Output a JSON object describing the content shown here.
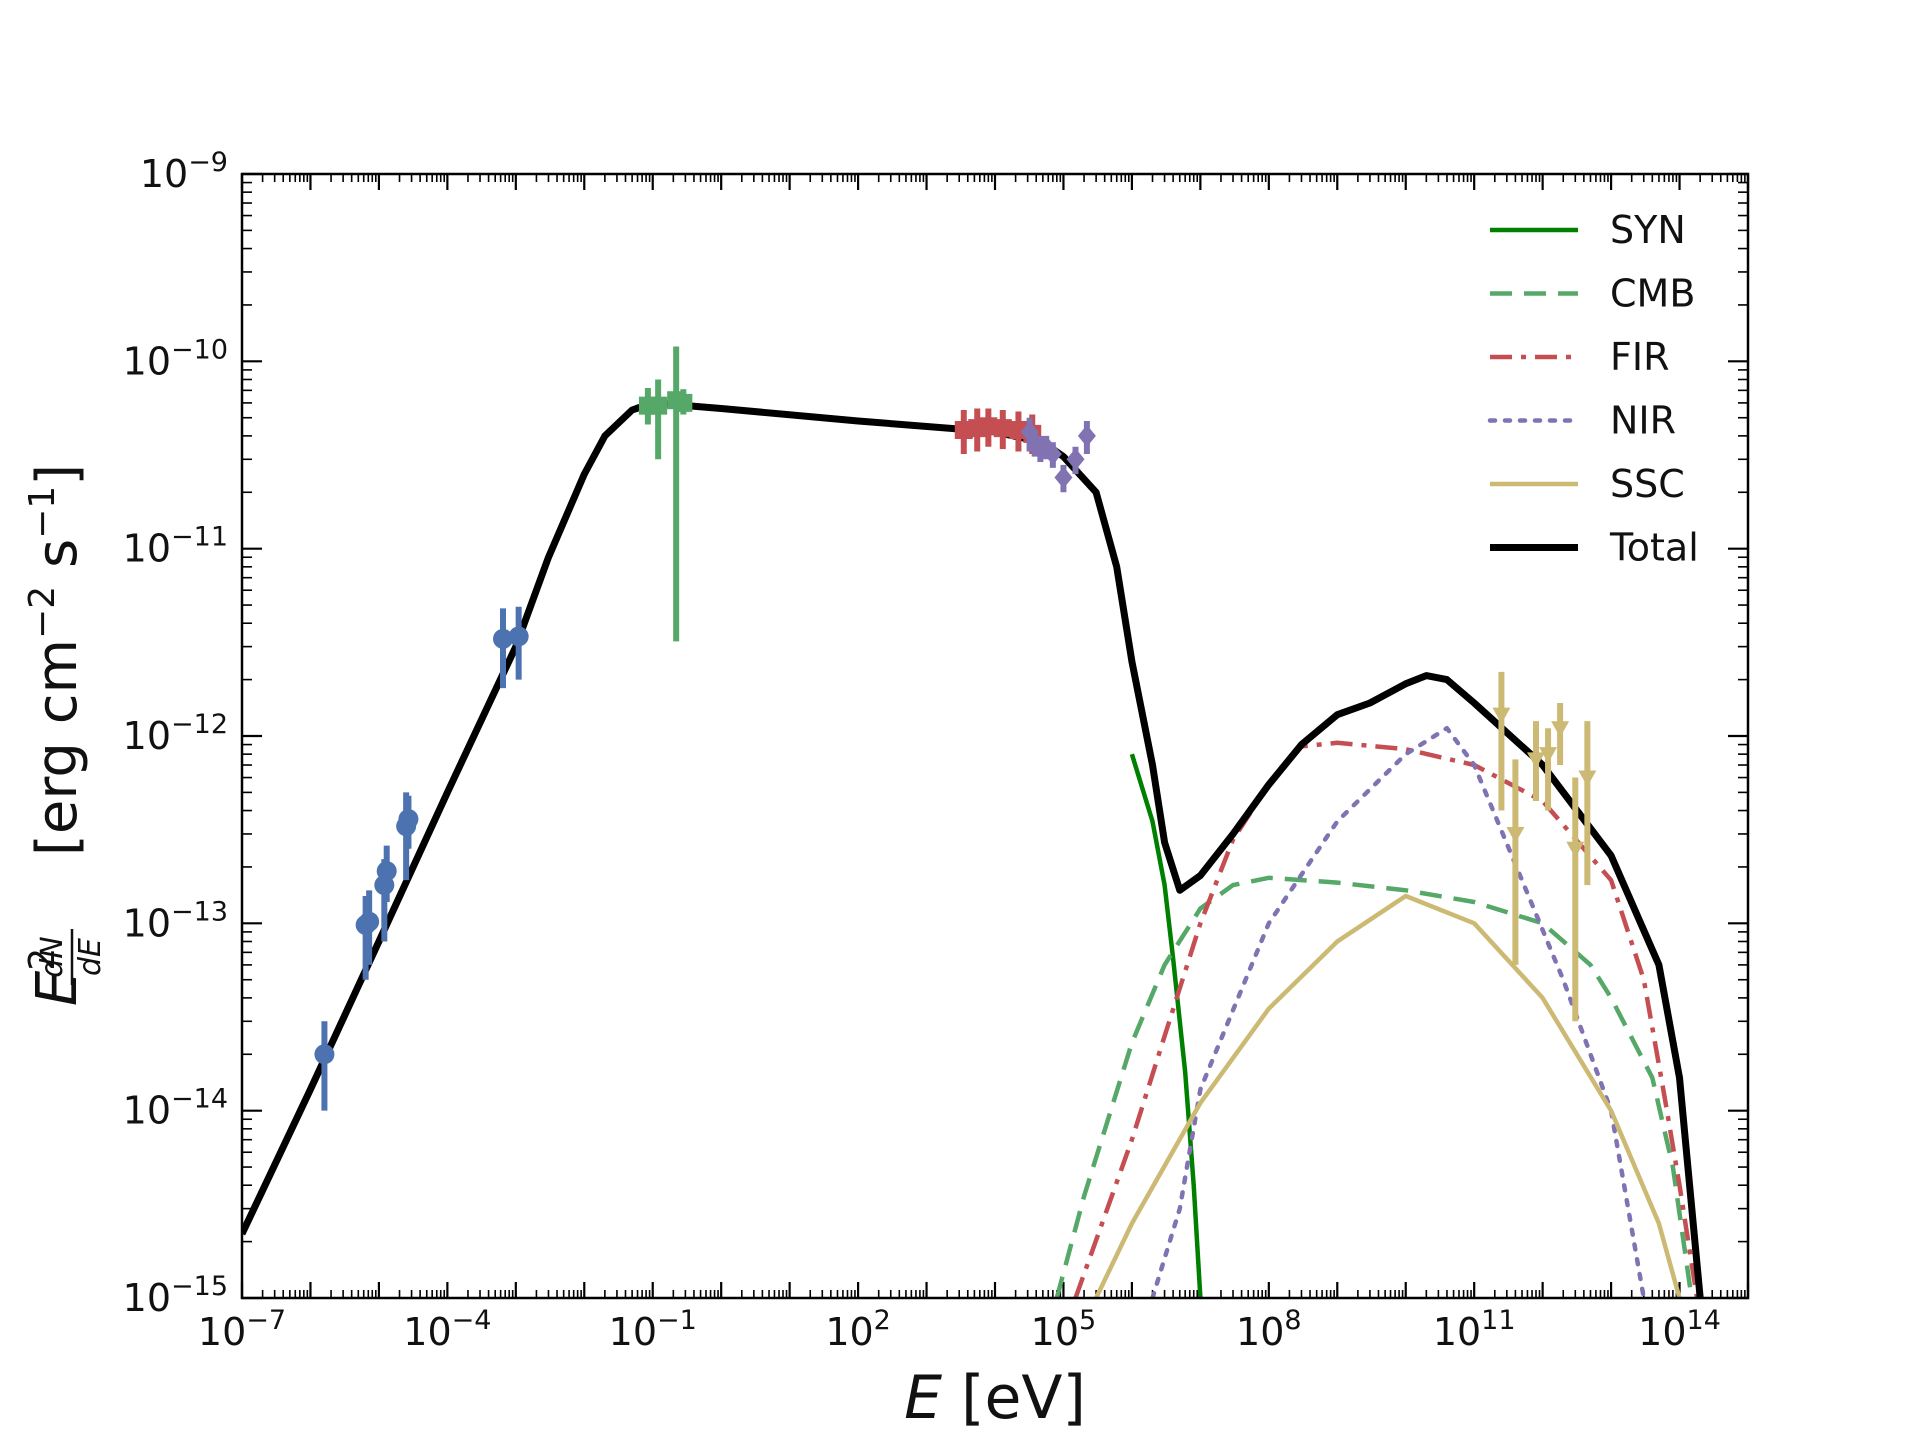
{
  "chart_data": {
    "type": "line",
    "xscale": "log",
    "yscale": "log",
    "xlim": [
      1e-07,
      1000000000000000.0
    ],
    "ylim": [
      1e-15,
      1e-09
    ],
    "xlabel": {
      "var": "E",
      "unit": "[eV]"
    },
    "ylabel": {
      "var": "E",
      "sup": "2",
      "frac_num": "dN",
      "frac_den": "dE",
      "unit_open": "[erg cm",
      "exp1": "−2",
      "mid": " s",
      "exp2": "−1",
      "unit_close": "]"
    },
    "x_ticks": [
      {
        "value": 1e-07,
        "base": "10",
        "exp": "−7"
      },
      {
        "value": 0.0001,
        "base": "10",
        "exp": "−4"
      },
      {
        "value": 0.1,
        "base": "10",
        "exp": "−1"
      },
      {
        "value": 100.0,
        "base": "10",
        "exp": "2"
      },
      {
        "value": 100000.0,
        "base": "10",
        "exp": "5"
      },
      {
        "value": 100000000.0,
        "base": "10",
        "exp": "8"
      },
      {
        "value": 100000000000.0,
        "base": "10",
        "exp": "11"
      },
      {
        "value": 100000000000000.0,
        "base": "10",
        "exp": "14"
      }
    ],
    "y_ticks": [
      {
        "value": 1e-15,
        "base": "10",
        "exp": "−15"
      },
      {
        "value": 1e-14,
        "base": "10",
        "exp": "−14"
      },
      {
        "value": 1e-13,
        "base": "10",
        "exp": "−13"
      },
      {
        "value": 1e-12,
        "base": "10",
        "exp": "−12"
      },
      {
        "value": 1e-11,
        "base": "10",
        "exp": "−11"
      },
      {
        "value": 1e-10,
        "base": "10",
        "exp": "−10"
      },
      {
        "value": 1e-09,
        "base": "10",
        "exp": "−9"
      }
    ],
    "legend_position": "top-right",
    "series": [
      {
        "name": "SYN",
        "color": "#008000",
        "dash": "solid",
        "width": "normal",
        "points": [
          [
            1000000.0,
            8e-13
          ],
          [
            2000000.0,
            3.5e-13
          ],
          [
            3000000.0,
            1.6e-13
          ],
          [
            4000000.0,
            6.5e-14
          ],
          [
            6000000.0,
            1.6e-14
          ],
          [
            8000000.0,
            4e-15
          ],
          [
            10000000.0,
            1e-15
          ]
        ]
      },
      {
        "name": "CMB",
        "color": "#55a868",
        "dash": "dashed",
        "width": "normal",
        "points": [
          [
            80000.0,
            1e-15
          ],
          [
            200000.0,
            3.5e-15
          ],
          [
            1000000.0,
            2.3e-14
          ],
          [
            3000000.0,
            6e-14
          ],
          [
            10000000.0,
            1.2e-13
          ],
          [
            30000000.0,
            1.6e-13
          ],
          [
            100000000.0,
            1.75e-13
          ],
          [
            1000000000.0,
            1.65e-13
          ],
          [
            10000000000.0,
            1.5e-13
          ],
          [
            100000000000.0,
            1.3e-13
          ],
          [
            1000000000000.0,
            1e-13
          ],
          [
            5000000000000.0,
            6e-14
          ],
          [
            10000000000000.0,
            4e-14
          ],
          [
            40000000000000.0,
            1.5e-14
          ],
          [
            80000000000000.0,
            5e-15
          ],
          [
            150000000000000.0,
            1e-15
          ]
        ]
      },
      {
        "name": "FIR",
        "color": "#c44e52",
        "dash": "dashdot",
        "width": "normal",
        "points": [
          [
            150000.0,
            1e-15
          ],
          [
            1000000.0,
            7e-15
          ],
          [
            3000000.0,
            2.5e-14
          ],
          [
            10000000.0,
            1e-13
          ],
          [
            30000000.0,
            2.8e-13
          ],
          [
            100000000.0,
            5.5e-13
          ],
          [
            300000000.0,
            8.8e-13
          ],
          [
            1000000000.0,
            9.2e-13
          ],
          [
            10000000000.0,
            8.5e-13
          ],
          [
            100000000000.0,
            7e-13
          ],
          [
            1000000000000.0,
            4.5e-13
          ],
          [
            10000000000000.0,
            1.7e-13
          ],
          [
            30000000000000.0,
            5e-14
          ],
          [
            60000000000000.0,
            1.2e-14
          ],
          [
            100000000000000.0,
            4e-15
          ],
          [
            180000000000000.0,
            1e-15
          ]
        ]
      },
      {
        "name": "NIR",
        "color": "#8172b2",
        "dash": "dotted",
        "width": "normal",
        "points": [
          [
            2000000.0,
            1e-15
          ],
          [
            5000000.0,
            3e-15
          ],
          [
            10000000.0,
            1.3e-14
          ],
          [
            100000000.0,
            1e-13
          ],
          [
            1000000000.0,
            3.5e-13
          ],
          [
            10000000000.0,
            8e-13
          ],
          [
            40000000000.0,
            1.1e-12
          ],
          [
            100000000000.0,
            7e-13
          ],
          [
            500000000000.0,
            1.7e-13
          ],
          [
            2000000000000.0,
            5e-14
          ],
          [
            10000000000000.0,
            1e-14
          ],
          [
            30000000000000.0,
            1e-15
          ]
        ]
      },
      {
        "name": "SSC",
        "color": "#ccb974",
        "dash": "solid",
        "width": "normal",
        "points": [
          [
            300000.0,
            1e-15
          ],
          [
            1000000.0,
            2.5e-15
          ],
          [
            10000000.0,
            1.1e-14
          ],
          [
            100000000.0,
            3.5e-14
          ],
          [
            1000000000.0,
            8e-14
          ],
          [
            10000000000.0,
            1.4e-13
          ],
          [
            100000000000.0,
            1e-13
          ],
          [
            1000000000000.0,
            4e-14
          ],
          [
            10000000000000.0,
            1e-14
          ],
          [
            50000000000000.0,
            2.5e-15
          ],
          [
            100000000000000.0,
            1e-15
          ]
        ]
      },
      {
        "name": "Total",
        "color": "#000000",
        "dash": "solid",
        "width": "thick",
        "points": [
          [
            1e-07,
            2.2e-15
          ],
          [
            1e-06,
            1.3e-14
          ],
          [
            1e-05,
            8e-14
          ],
          [
            0.0001,
            5e-13
          ],
          [
            0.001,
            3e-12
          ],
          [
            0.003,
            9e-12
          ],
          [
            0.01,
            2.5e-11
          ],
          [
            0.02,
            4e-11
          ],
          [
            0.05,
            5.5e-11
          ],
          [
            0.1,
            6e-11
          ],
          [
            1,
            5.6e-11
          ],
          [
            100,
            4.8e-11
          ],
          [
            10000.0,
            4.2e-11
          ],
          [
            50000.0,
            3.7e-11
          ],
          [
            100000.0,
            3.1e-11
          ],
          [
            300000.0,
            2e-11
          ],
          [
            600000.0,
            8e-12
          ],
          [
            1000000.0,
            2.5e-12
          ],
          [
            2000000.0,
            7e-13
          ],
          [
            3000000.0,
            2.7e-13
          ],
          [
            5000000.0,
            1.5e-13
          ],
          [
            10000000.0,
            1.8e-13
          ],
          [
            30000000.0,
            3e-13
          ],
          [
            100000000.0,
            5.5e-13
          ],
          [
            300000000.0,
            9e-13
          ],
          [
            1000000000.0,
            1.3e-12
          ],
          [
            3000000000.0,
            1.5e-12
          ],
          [
            10000000000.0,
            1.9e-12
          ],
          [
            20000000000.0,
            2.1e-12
          ],
          [
            40000000000.0,
            2e-12
          ],
          [
            100000000000.0,
            1.5e-12
          ],
          [
            1000000000000.0,
            7e-13
          ],
          [
            10000000000000.0,
            2.3e-13
          ],
          [
            50000000000000.0,
            6e-14
          ],
          [
            100000000000000.0,
            1.5e-14
          ],
          [
            200000000000000.0,
            1e-15
          ]
        ]
      }
    ],
    "data_points": [
      {
        "group": "radio",
        "color": "#4c72b0",
        "marker": "circle",
        "points": [
          {
            "x": 1.6e-06,
            "y": 2e-14,
            "lo": 1e-14,
            "hi": 3e-14
          },
          {
            "x": 6.4e-06,
            "y": 9.8e-14,
            "lo": 5e-14,
            "hi": 1.4e-13
          },
          {
            "x": 7.2e-06,
            "y": 1.02e-13,
            "lo": 6e-14,
            "hi": 1.5e-13
          },
          {
            "x": 1.2e-05,
            "y": 1.6e-13,
            "lo": 8e-14,
            "hi": 2.2e-13
          },
          {
            "x": 1.3e-05,
            "y": 1.9e-13,
            "lo": 1.3e-13,
            "hi": 2.6e-13
          },
          {
            "x": 2.5e-05,
            "y": 3.3e-13,
            "lo": 1.7e-13,
            "hi": 5e-13
          },
          {
            "x": 2.7e-05,
            "y": 3.6e-13,
            "lo": 2.5e-13,
            "hi": 4.8e-13
          },
          {
            "x": 0.00065,
            "y": 3.3e-12,
            "lo": 1.8e-12,
            "hi": 4.8e-12
          },
          {
            "x": 0.0011,
            "y": 3.4e-12,
            "lo": 2e-12,
            "hi": 4.9e-12
          }
        ]
      },
      {
        "group": "infrared",
        "color": "#55a868",
        "marker": "square",
        "points": [
          {
            "x": 0.085,
            "y": 5.8e-11,
            "lo": 4.6e-11,
            "hi": 7.2e-11
          },
          {
            "x": 0.12,
            "y": 5.8e-11,
            "lo": 3e-11,
            "hi": 8e-11
          },
          {
            "x": 0.22,
            "y": 6.2e-11,
            "lo": 3.2e-12,
            "hi": 1.2e-10
          },
          {
            "x": 0.28,
            "y": 6e-11,
            "lo": 5.2e-11,
            "hi": 7.1e-11
          }
        ]
      },
      {
        "group": "x-ray",
        "color": "#c44e52",
        "marker": "square",
        "points": [
          {
            "x": 3500.0,
            "y": 4.3e-11,
            "lo": 3.2e-11,
            "hi": 5.5e-11
          },
          {
            "x": 5500.0,
            "y": 4.4e-11,
            "lo": 3.3e-11,
            "hi": 5.6e-11
          },
          {
            "x": 8000.0,
            "y": 4.5e-11,
            "lo": 3.5e-11,
            "hi": 5.6e-11
          },
          {
            "x": 13000.0,
            "y": 4.4e-11,
            "lo": 3.4e-11,
            "hi": 5.5e-11
          },
          {
            "x": 22000.0,
            "y": 4.3e-11,
            "lo": 3.3e-11,
            "hi": 5.4e-11
          },
          {
            "x": 35000.0,
            "y": 4.1e-11,
            "lo": 3.2e-11,
            "hi": 5.2e-11
          }
        ]
      },
      {
        "group": "hard-x-ray",
        "color": "#8172b2",
        "marker": "diamond",
        "points": [
          {
            "x": 32000.0,
            "y": 4.2e-11,
            "lo": 3.3e-11,
            "hi": 5e-11
          },
          {
            "x": 38000.0,
            "y": 3.7e-11,
            "lo": 3.1e-11,
            "hi": 4.3e-11
          },
          {
            "x": 46000.0,
            "y": 3.4e-11,
            "lo": 2.9e-11,
            "hi": 4e-11
          },
          {
            "x": 56000.0,
            "y": 3.5e-11,
            "lo": 3e-11,
            "hi": 4e-11
          },
          {
            "x": 70000.0,
            "y": 3.2e-11,
            "lo": 2.7e-11,
            "hi": 3.7e-11
          },
          {
            "x": 100000.0,
            "y": 2.4e-11,
            "lo": 2e-11,
            "hi": 2.8e-11
          },
          {
            "x": 150000.0,
            "y": 3e-11,
            "lo": 2.5e-11,
            "hi": 3.5e-11
          },
          {
            "x": 220000.0,
            "y": 4e-11,
            "lo": 3.2e-11,
            "hi": 4.8e-11
          }
        ]
      },
      {
        "group": "gamma-ray",
        "color": "#ccb974",
        "marker": "down-triangle",
        "points": [
          {
            "x": 250000000000.0,
            "y": 1.3e-12,
            "lo": 4e-13,
            "hi": 2.2e-12
          },
          {
            "x": 400000000000.0,
            "y": 3e-13,
            "lo": 6e-14,
            "hi": 7.5e-13
          },
          {
            "x": 800000000000.0,
            "y": 7.5e-13,
            "lo": 4.5e-13,
            "hi": 1.2e-12
          },
          {
            "x": 1200000000000.0,
            "y": 8e-13,
            "lo": 4e-13,
            "hi": 1.1e-12
          },
          {
            "x": 1800000000000.0,
            "y": 1.1e-12,
            "lo": 7e-13,
            "hi": 1.5e-12
          },
          {
            "x": 3000000000000.0,
            "y": 2.5e-13,
            "lo": 3e-14,
            "hi": 6e-13
          },
          {
            "x": 4500000000000.0,
            "y": 6e-13,
            "lo": 1.6e-13,
            "hi": 1.2e-12
          }
        ]
      }
    ]
  }
}
